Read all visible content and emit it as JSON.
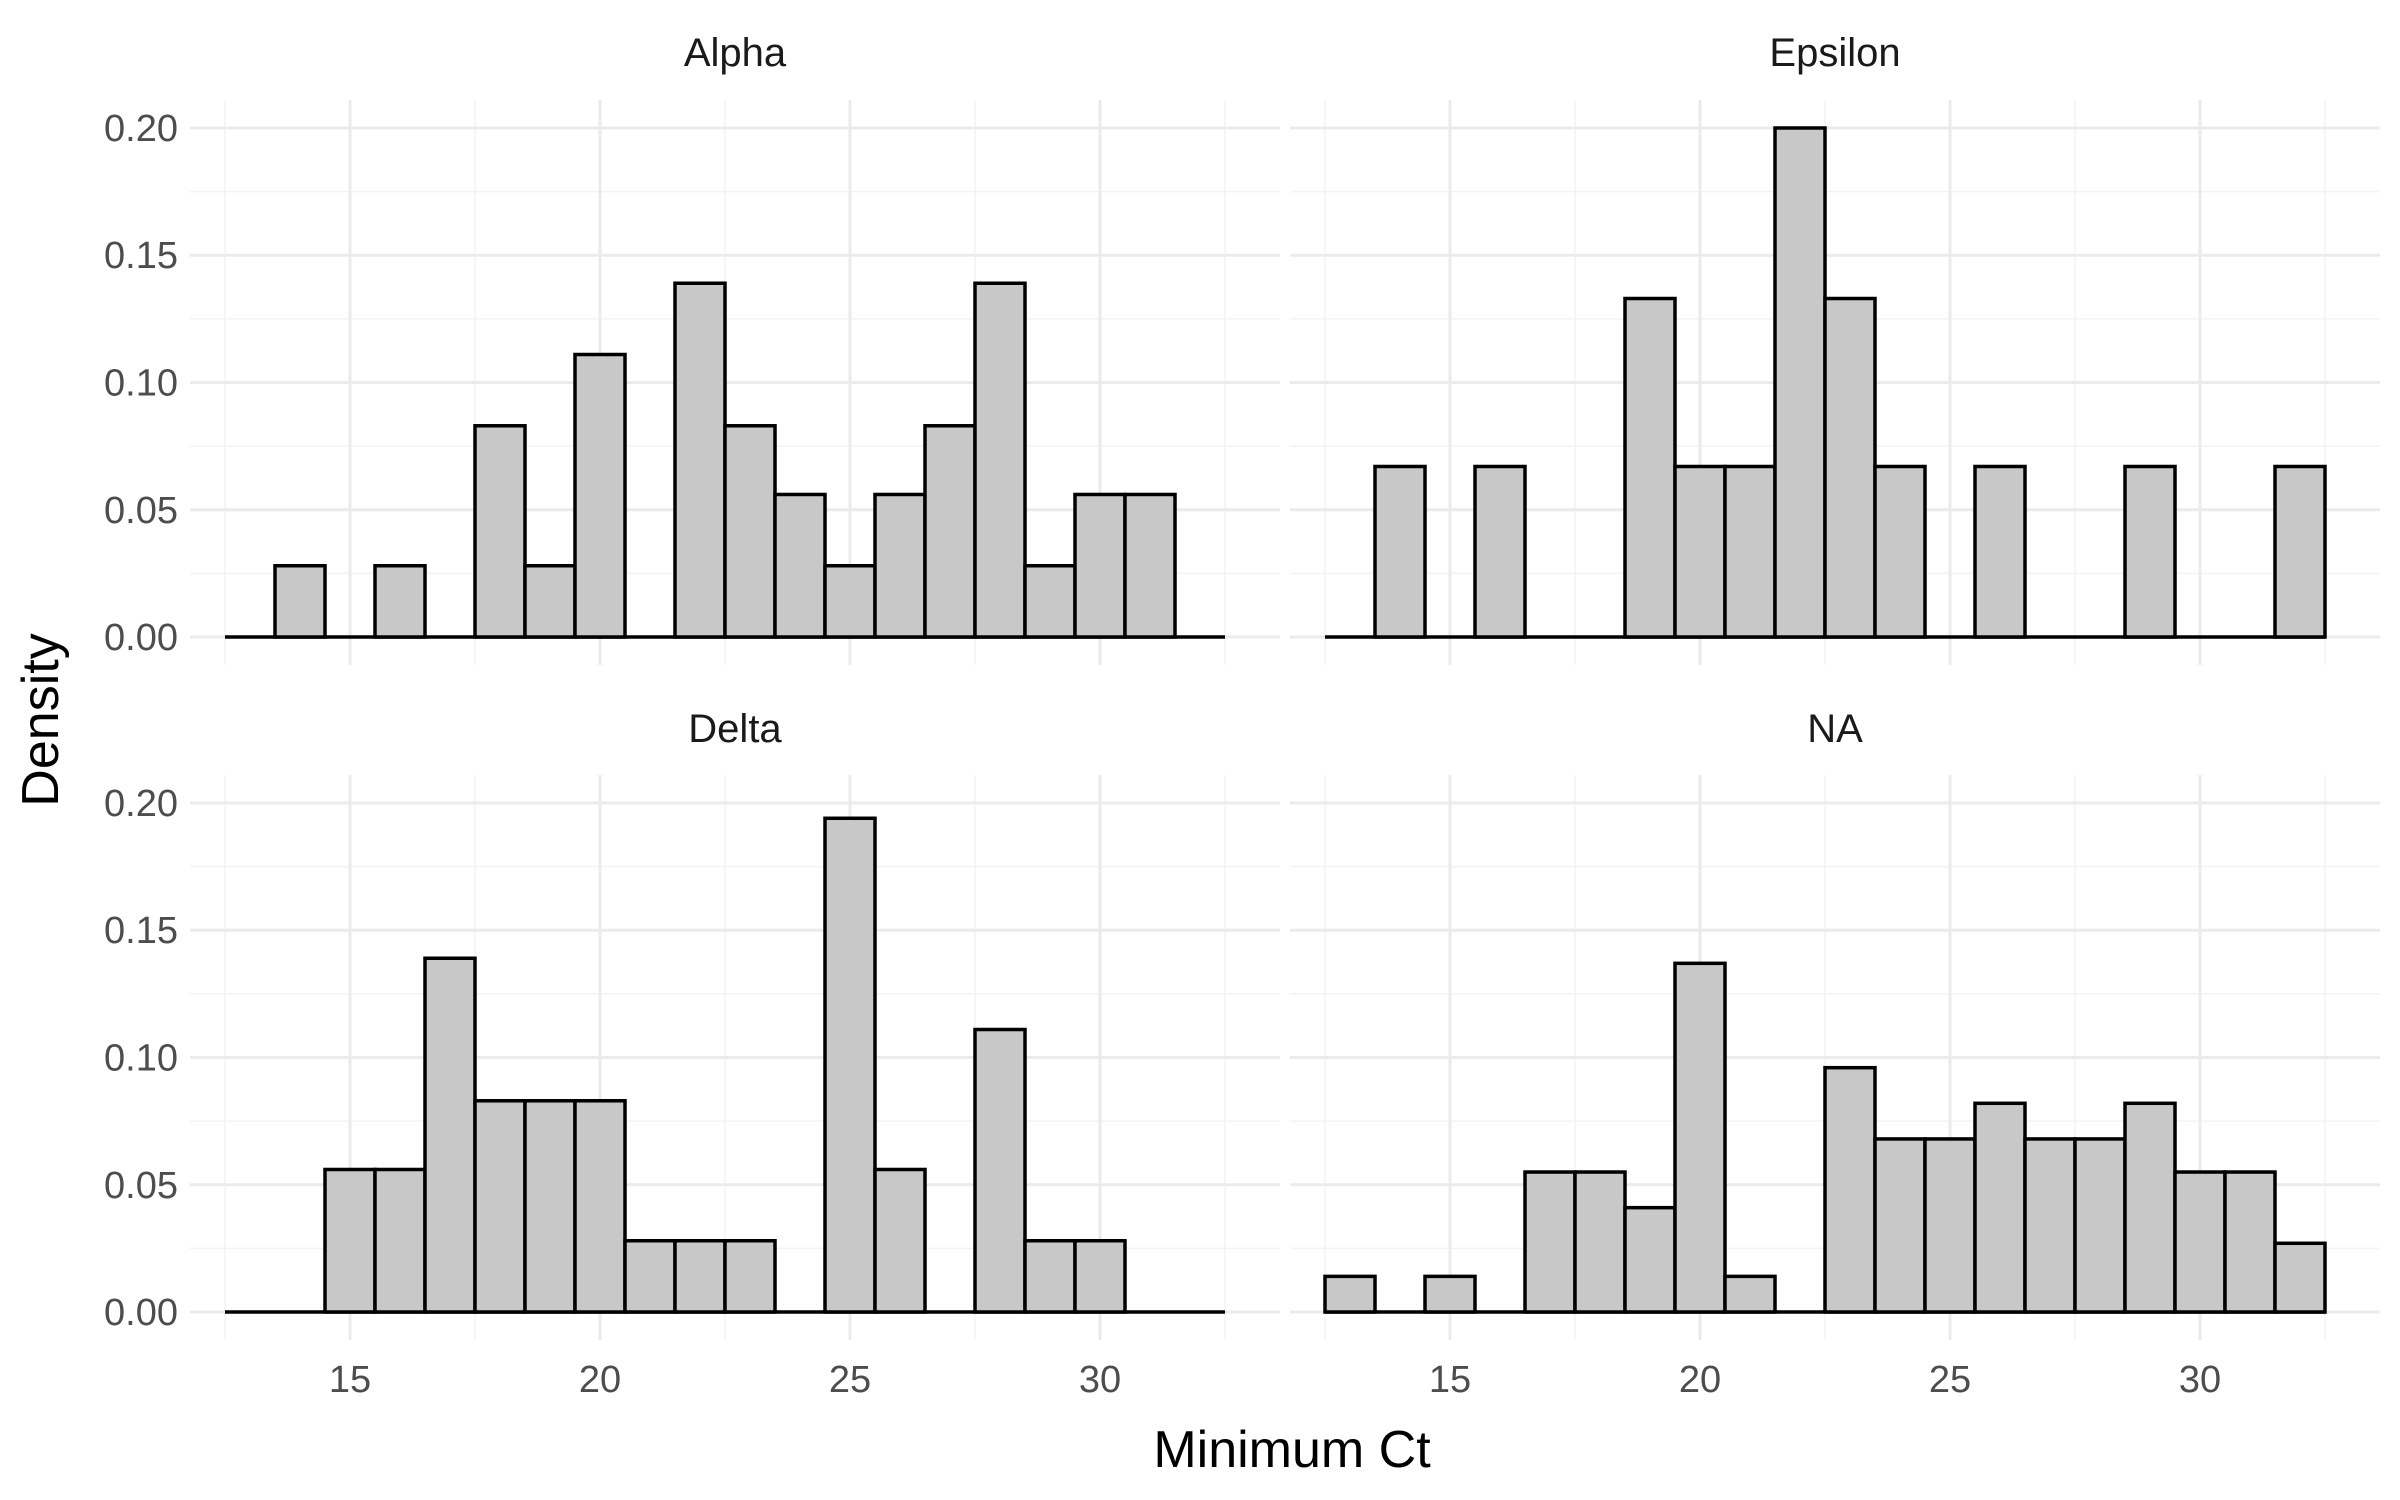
{
  "chart_data": {
    "type": "bar",
    "subtype": "faceted-histogram",
    "xlabel": "Minimum Ct",
    "ylabel": "Density",
    "xlim": [
      11.8,
      33.6
    ],
    "ylim": [
      -0.011,
      0.211
    ],
    "x_ticks": [
      15,
      20,
      25,
      30
    ],
    "y_ticks": [
      0.0,
      0.05,
      0.1,
      0.15,
      0.2
    ],
    "y_tick_labels": [
      "0.00",
      "0.05",
      "0.10",
      "0.15",
      "0.20"
    ],
    "bin_width": 1,
    "bins_x_range": [
      12.5,
      32.5
    ],
    "grid": true,
    "bar_fill": "#c8c8c8",
    "bar_outline": "#000000",
    "facets": [
      {
        "name": "Alpha",
        "bin_centers": [
          13,
          14,
          15,
          16,
          17,
          18,
          19,
          20,
          21,
          22,
          23,
          24,
          25,
          26,
          27,
          28,
          29,
          30,
          31,
          32
        ],
        "values": [
          0,
          0.028,
          0,
          0.028,
          0,
          0.083,
          0.028,
          0.111,
          0,
          0.139,
          0.083,
          0.056,
          0.028,
          0.056,
          0.083,
          0.139,
          0.028,
          0.056,
          0.056,
          0
        ]
      },
      {
        "name": "Epsilon",
        "bin_centers": [
          13,
          14,
          15,
          16,
          17,
          18,
          19,
          20,
          21,
          22,
          23,
          24,
          25,
          26,
          27,
          28,
          29,
          30,
          31,
          32
        ],
        "values": [
          0,
          0.067,
          0,
          0.067,
          0,
          0,
          0.133,
          0.067,
          0.067,
          0.2,
          0.133,
          0.067,
          0,
          0.067,
          0,
          0,
          0.067,
          0,
          0,
          0.067
        ]
      },
      {
        "name": "Delta",
        "bin_centers": [
          13,
          14,
          15,
          16,
          17,
          18,
          19,
          20,
          21,
          22,
          23,
          24,
          25,
          26,
          27,
          28,
          29,
          30,
          31,
          32
        ],
        "values": [
          0,
          0,
          0.056,
          0.056,
          0.139,
          0.083,
          0.083,
          0.083,
          0.028,
          0.028,
          0.028,
          0,
          0.194,
          0.056,
          0,
          0.111,
          0.028,
          0.028,
          0,
          0
        ]
      },
      {
        "name": "NA",
        "bin_centers": [
          13,
          14,
          15,
          16,
          17,
          18,
          19,
          20,
          21,
          22,
          23,
          24,
          25,
          26,
          27,
          28,
          29,
          30,
          31,
          32
        ],
        "values": [
          0.014,
          0,
          0.014,
          0,
          0.055,
          0.055,
          0.041,
          0.137,
          0.014,
          0,
          0.096,
          0.068,
          0.068,
          0.082,
          0.068,
          0.068,
          0.082,
          0.055,
          0.055,
          0.027
        ]
      }
    ]
  }
}
